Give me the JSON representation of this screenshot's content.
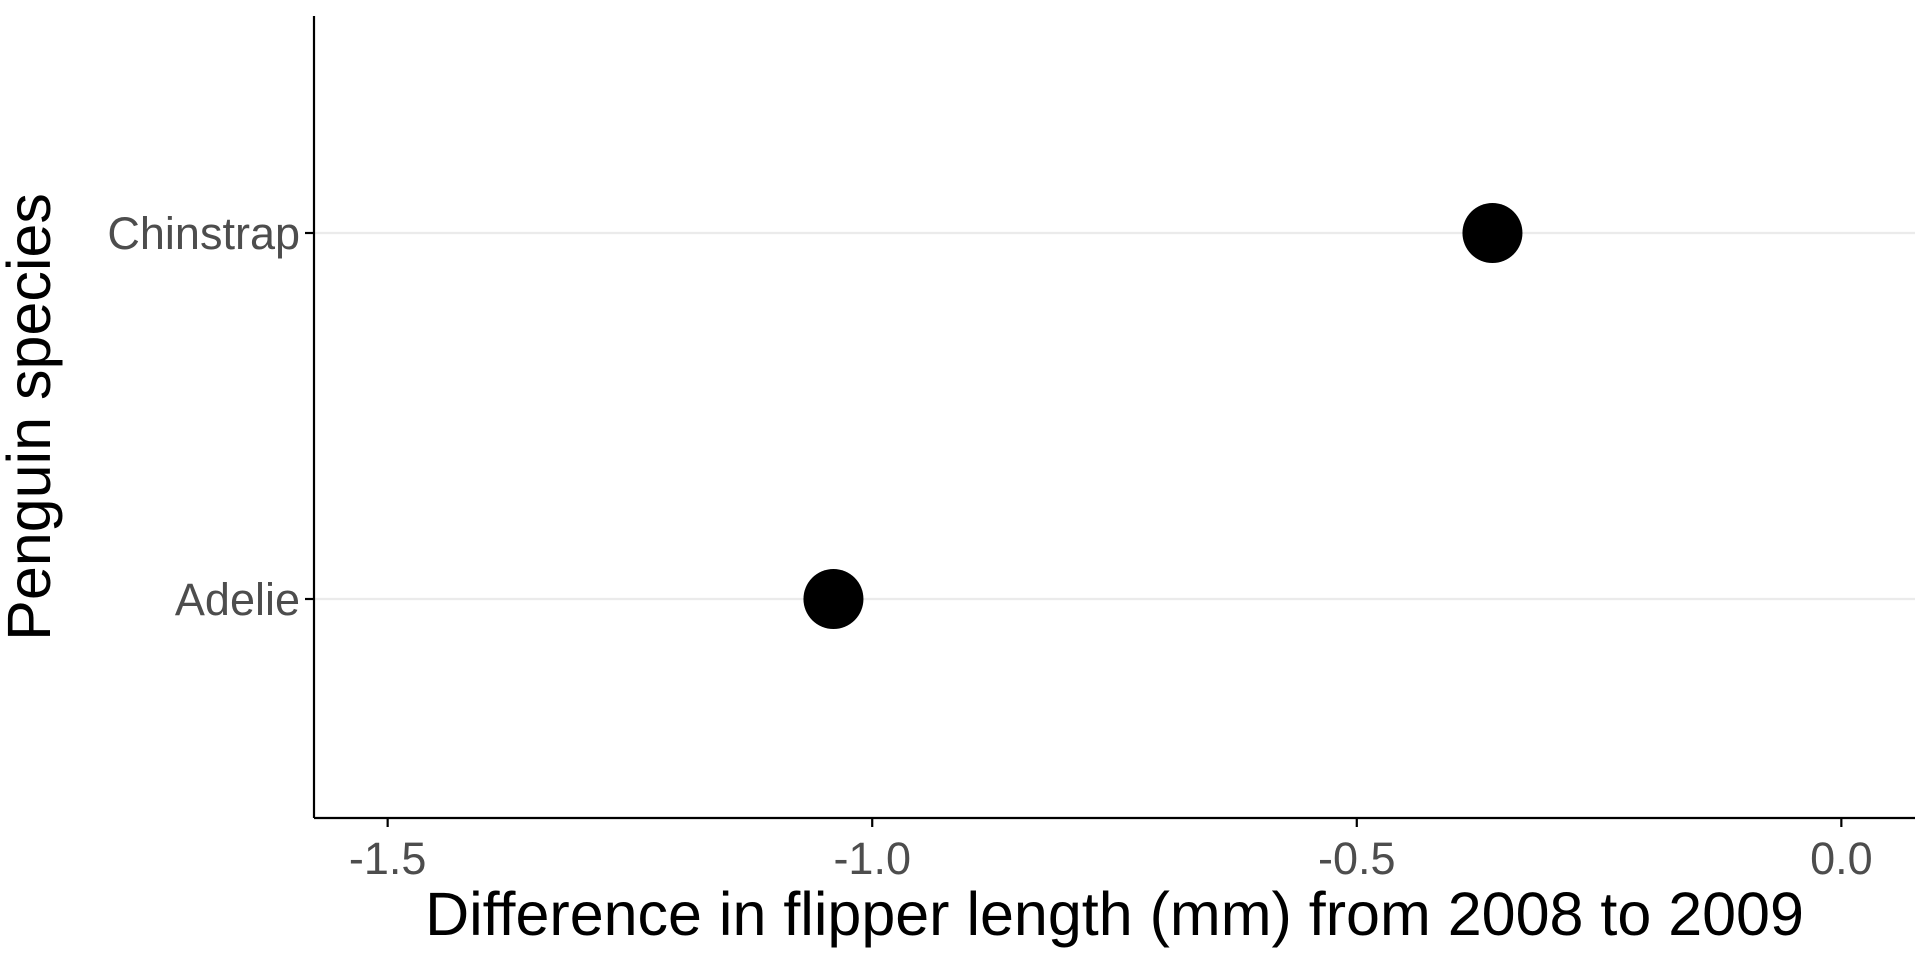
{
  "chart_data": {
    "type": "scatter",
    "orientation": "horizontal",
    "xlabel": "Difference in flipper length (mm) from 2008 to 2009",
    "ylabel": "Penguin species",
    "xlim": [
      -1.576,
      0.076
    ],
    "x_ticks": [
      -1.5,
      -1.0,
      -0.5,
      0.0
    ],
    "x_tick_labels": [
      "-1.5",
      "-1.0",
      "-0.5",
      "0.0"
    ],
    "categories": [
      "Adelie",
      "Chinstrap"
    ],
    "points": [
      {
        "category": "Adelie",
        "x": -1.04
      },
      {
        "category": "Chinstrap",
        "x": -0.36
      }
    ],
    "grid": {
      "major_y": true,
      "major_x": false
    },
    "colors": {
      "point": "#000000",
      "grid": "#ebebeb",
      "axis": "#000000",
      "tick_label": "#4d4d4d"
    }
  }
}
